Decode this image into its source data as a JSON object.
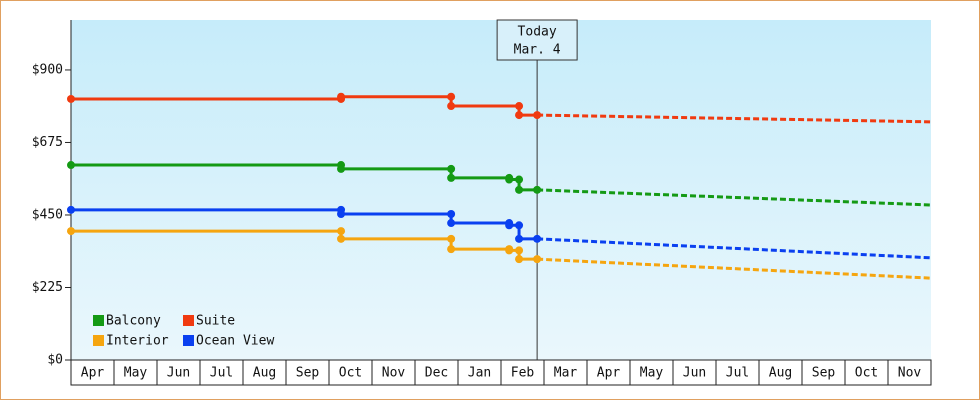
{
  "chart_data": {
    "type": "step-line",
    "categories": [
      "Apr",
      "May",
      "Jun",
      "Jul",
      "Aug",
      "Sep",
      "Oct",
      "Nov",
      "Dec",
      "Jan",
      "Feb",
      "Mar",
      "Apr",
      "May",
      "Jun",
      "Jul",
      "Aug",
      "Sep",
      "Oct",
      "Nov"
    ],
    "xlim": [
      0,
      20
    ],
    "ylim": [
      0,
      1055
    ],
    "yticks": [
      {
        "value": 0,
        "label": "$0"
      },
      {
        "value": 225,
        "label": "$225"
      },
      {
        "value": 450,
        "label": "$450"
      },
      {
        "value": 675,
        "label": "$675"
      },
      {
        "value": 900,
        "label": "$900"
      }
    ],
    "series": [
      {
        "name": "Balcony",
        "color": "#149a14",
        "x": [
          0,
          6.28,
          6.28,
          8.84,
          8.84,
          10.19,
          10.19,
          10.42,
          10.42,
          10.84
        ],
        "values": [
          605,
          605,
          593,
          593,
          565,
          565,
          560,
          560,
          528,
          528
        ]
      },
      {
        "name": "Suite",
        "color": "#f03a10",
        "x": [
          0,
          6.28,
          6.28,
          8.84,
          8.84,
          10.42,
          10.42,
          10.84
        ],
        "values": [
          810,
          810,
          817,
          817,
          788,
          788,
          760,
          760
        ]
      },
      {
        "name": "Interior",
        "color": "#f5a50f",
        "x": [
          0,
          6.28,
          6.28,
          8.84,
          8.84,
          10.19,
          10.19,
          10.42,
          10.42,
          10.84
        ],
        "values": [
          400,
          400,
          376,
          376,
          344,
          344,
          340,
          340,
          313,
          313
        ]
      },
      {
        "name": "Ocean View",
        "color": "#0a40f0",
        "x": [
          0,
          6.28,
          6.28,
          8.84,
          8.84,
          10.19,
          10.19,
          10.42,
          10.42,
          10.84
        ],
        "values": [
          466,
          466,
          453,
          453,
          425,
          425,
          418,
          418,
          376,
          376
        ]
      }
    ],
    "forecast": [
      {
        "x": [
          10.84,
          20
        ],
        "values": [
          528,
          481
        ]
      },
      {
        "x": [
          10.84,
          20
        ],
        "values": [
          760,
          739
        ]
      },
      {
        "x": [
          10.84,
          20
        ],
        "values": [
          313,
          254
        ]
      },
      {
        "x": [
          10.84,
          20
        ],
        "values": [
          376,
          317
        ]
      }
    ],
    "today": {
      "x": 10.84,
      "label": [
        "Today",
        "Mar. 4"
      ]
    }
  }
}
